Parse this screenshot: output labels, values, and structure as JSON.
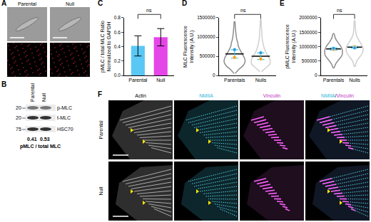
{
  "figure": {
    "A": {
      "letter": "A",
      "labels": [
        "Parental",
        "Null"
      ]
    },
    "B": {
      "letter": "B",
      "lanes": [
        "Parental",
        "Null"
      ],
      "markers": [
        20,
        20,
        75
      ],
      "bands": [
        "p-MLC",
        "t-MLC",
        "HSC70"
      ],
      "ratios": [
        0.41,
        0.53
      ],
      "caption": "pMLC / total MLC"
    },
    "F": {
      "letter": "F",
      "columns": [
        "Actin",
        "NMIIA",
        "Vinculin"
      ],
      "merged": [
        "NMIIA",
        "/",
        "Vinculin"
      ],
      "rows": [
        "Parental",
        "Null"
      ]
    }
  },
  "chart_data": [
    {
      "panel": "C",
      "type": "bar",
      "y_label": [
        "pMLC / total MLC Ratio",
        "Normalized to GAPDH"
      ],
      "categories": [
        "Parental",
        "Null"
      ],
      "values": [
        0.41,
        0.53
      ],
      "errors": [
        0.14,
        0.12
      ],
      "colors": [
        "#5ac8f5",
        "#e546e8"
      ],
      "ylim": [
        0,
        0.8
      ],
      "yticks": [
        {
          "value": 0,
          "label": "0.0"
        },
        {
          "value": 0.2,
          "label": "0.2"
        },
        {
          "value": 0.4,
          "label": "0.4"
        },
        {
          "value": 0.6,
          "label": "0.6"
        },
        {
          "value": 0.8,
          "label": "0.8"
        }
      ],
      "significance": "ns"
    },
    {
      "panel": "D",
      "type": "violin",
      "y_label": [
        "MLC Fluorescence",
        "Intensity (A.U.)"
      ],
      "categories": [
        "Parentals",
        "Nulls"
      ],
      "means": [
        560000,
        500000
      ],
      "errors": [
        110000,
        85000
      ],
      "replicates": [
        {
          "color": "#f5a020",
          "values": [
            470000,
            430000
          ]
        },
        {
          "color": "#2a9be0",
          "values": [
            670000,
            590000
          ]
        }
      ],
      "outlines": [
        {
          "y": [
            50000,
            150000,
            250000,
            350000,
            450000,
            550000,
            650000,
            750000,
            850000,
            950000,
            1100000,
            1250000,
            1400000
          ],
          "width": [
            0.02,
            0.15,
            0.32,
            0.4,
            0.38,
            0.3,
            0.22,
            0.15,
            0.12,
            0.08,
            0.05,
            0.03,
            0.01
          ]
        },
        {
          "y": [
            100000,
            200000,
            300000,
            400000,
            500000,
            600000,
            700000,
            800000,
            900000,
            1000000,
            1150000,
            1300000,
            1450000
          ],
          "width": [
            0.03,
            0.2,
            0.35,
            0.36,
            0.28,
            0.2,
            0.14,
            0.1,
            0.07,
            0.05,
            0.04,
            0.02,
            0.01
          ]
        }
      ],
      "colors": [
        "#8c8c8c",
        "#cfcfcf"
      ],
      "ylim": [
        0,
        1500000
      ],
      "yticks": [
        0,
        500000,
        1000000,
        1500000
      ],
      "significance": "ns"
    },
    {
      "panel": "E",
      "type": "violin",
      "y_label": [
        "pMLC Fluorescence",
        "Intensity (A.U.)"
      ],
      "categories": [
        "Parentals",
        "Nulls"
      ],
      "means": [
        920000,
        980000
      ],
      "errors": [
        40000,
        30000
      ],
      "replicates": [
        {
          "color": "#f5a020",
          "values": [
            900000,
            1000000
          ]
        },
        {
          "color": "#2a9be0",
          "values": [
            940000,
            960000
          ]
        }
      ],
      "outlines": [
        {
          "y": [
            250000,
            400000,
            550000,
            700000,
            850000,
            1000000,
            1150000,
            1300000,
            1450000
          ],
          "width": [
            0.02,
            0.1,
            0.25,
            0.4,
            0.42,
            0.35,
            0.2,
            0.08,
            0.02
          ]
        },
        {
          "y": [
            300000,
            500000,
            650000,
            800000,
            950000,
            1100000,
            1250000,
            1400000,
            1600000,
            1900000
          ],
          "width": [
            0.02,
            0.1,
            0.25,
            0.38,
            0.4,
            0.3,
            0.18,
            0.08,
            0.04,
            0.01
          ]
        }
      ],
      "colors": [
        "#8c8c8c",
        "#cfcfcf"
      ],
      "ylim": [
        0,
        2000000
      ],
      "yticks": [
        0,
        500000,
        1000000,
        1500000,
        2000000
      ],
      "significance": "ns"
    }
  ]
}
